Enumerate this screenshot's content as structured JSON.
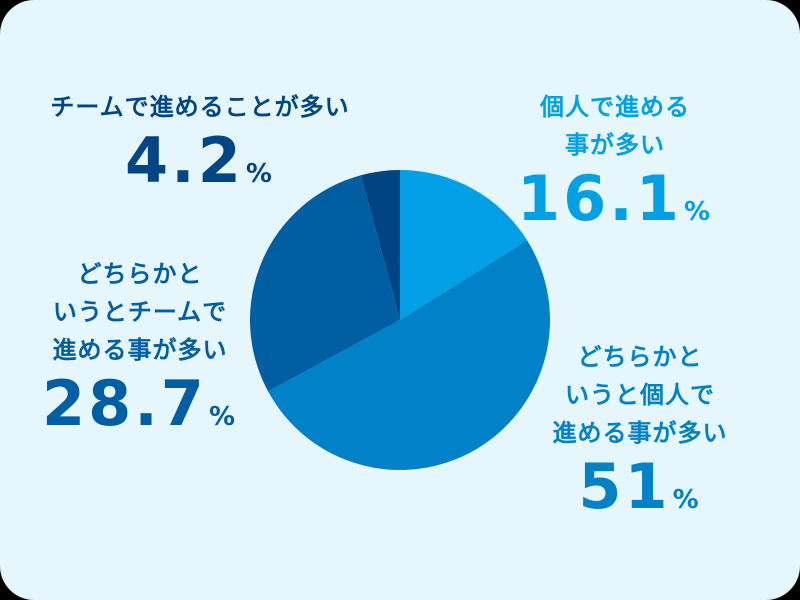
{
  "chart_data": {
    "type": "pie",
    "title": "",
    "categories": [
      "個人で進める事が多い",
      "どちらかというと個人で進める事が多い",
      "どちらかというとチームで進める事が多い",
      "チームで進めることが多い"
    ],
    "values": [
      16.1,
      51,
      28.7,
      4.2
    ],
    "unit": "%",
    "colors": [
      "#009fe6",
      "#0081c8",
      "#005fa3",
      "#004483"
    ],
    "start_angle": "12 o'clock, clockwise",
    "legend": "none (direct labels)"
  },
  "labels": [
    {
      "lines": [
        "個人で進める",
        "事が多い"
      ],
      "value": "16.1",
      "unit": "%"
    },
    {
      "lines": [
        "どちらかと",
        "いうと個人で",
        "進める事が多い"
      ],
      "value": "51",
      "unit": "%"
    },
    {
      "lines": [
        "どちらかと",
        "いうとチームで",
        "進める事が多い"
      ],
      "value": "28.7",
      "unit": "%"
    },
    {
      "lines": [
        "チームで進めることが多い"
      ],
      "value": "4.2",
      "unit": "%"
    }
  ],
  "colors": {
    "background": "#e6f6fd"
  }
}
